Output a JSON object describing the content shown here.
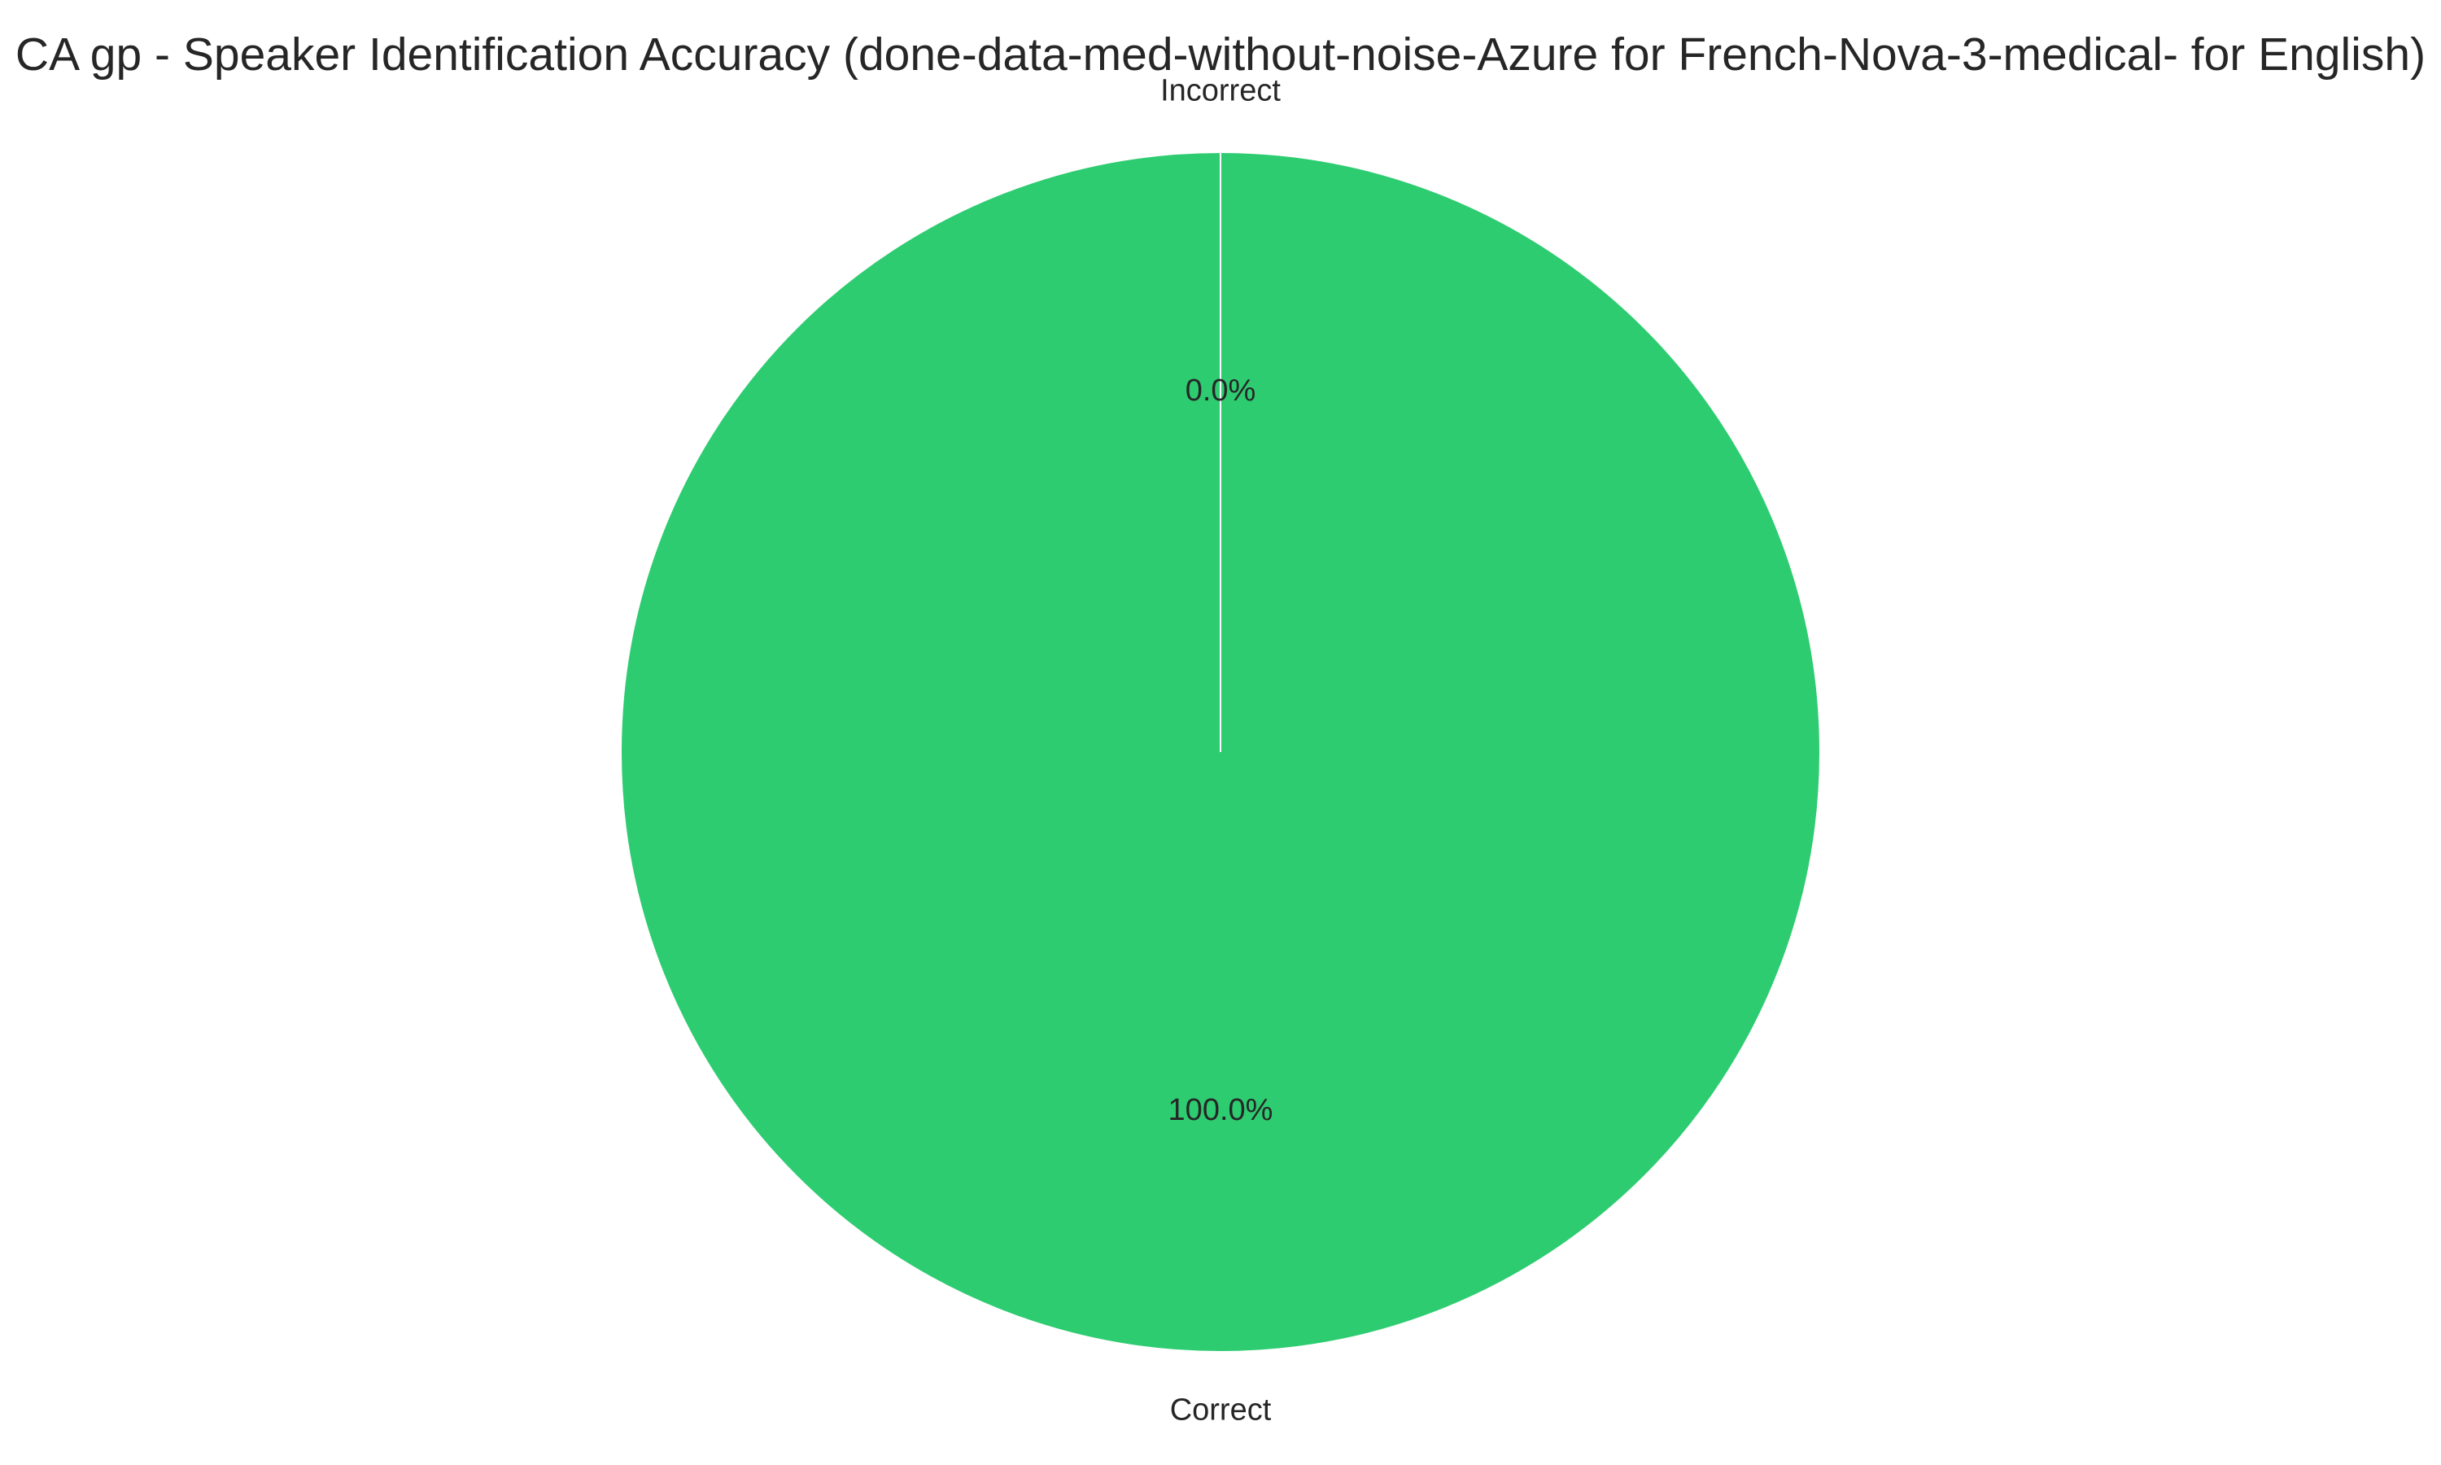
{
  "chart_data": {
    "type": "pie",
    "title": "CA gp - Speaker Identification Accuracy (done-data-med-without-noise-Azure for French-Nova-3-medical- for English)",
    "slices": [
      {
        "label": "Incorrect",
        "value": 0.0,
        "pct_label": "0.0%",
        "color": "#e74c3c"
      },
      {
        "label": "Correct",
        "value": 100.0,
        "pct_label": "100.0%",
        "color": "#2ecc71"
      }
    ],
    "start_angle_deg": 90,
    "direction": "counterclockwise",
    "edge_color": "#ffffff"
  }
}
